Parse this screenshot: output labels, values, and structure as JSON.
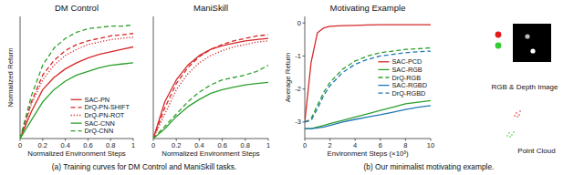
{
  "chart_data": [
    {
      "type": "line",
      "title": "DM Control",
      "x_label": "Normalized Environment Steps",
      "y_label": "Normalized Return",
      "x": [
        0,
        0.1,
        0.2,
        0.3,
        0.4,
        0.5,
        0.6,
        0.7,
        0.8,
        0.9,
        1
      ],
      "xlim": [
        0,
        1
      ],
      "xticks": [
        0,
        0.2,
        0.4,
        0.6,
        0.8,
        1
      ],
      "ylim": [
        0,
        1
      ],
      "tick_labels": "x",
      "grid": false,
      "legend": "lower right",
      "series": [
        {
          "name": "SAC-PN",
          "color": "#d62728",
          "line_style": "solid",
          "values": [
            0,
            0.22,
            0.4,
            0.5,
            0.57,
            0.62,
            0.66,
            0.69,
            0.71,
            0.73,
            0.75
          ]
        },
        {
          "name": "DrQ-PN-SHIFT",
          "color": "#d62728",
          "line_style": "dashed",
          "values": [
            0,
            0.3,
            0.52,
            0.64,
            0.72,
            0.77,
            0.8,
            0.82,
            0.84,
            0.85,
            0.86
          ]
        },
        {
          "name": "DrQ-PN-ROT",
          "color": "#d62728",
          "line_style": "dotted",
          "values": [
            0,
            0.28,
            0.48,
            0.6,
            0.68,
            0.73,
            0.77,
            0.79,
            0.81,
            0.82,
            0.83
          ]
        },
        {
          "name": "SAC-CNN",
          "color": "#2ca02c",
          "line_style": "solid",
          "values": [
            0,
            0.15,
            0.3,
            0.4,
            0.47,
            0.52,
            0.55,
            0.58,
            0.6,
            0.61,
            0.62
          ]
        },
        {
          "name": "DrQ-CNN",
          "color": "#2ca02c",
          "line_style": "dashed",
          "values": [
            0,
            0.35,
            0.6,
            0.74,
            0.82,
            0.87,
            0.9,
            0.91,
            0.92,
            0.92,
            0.93
          ]
        }
      ]
    },
    {
      "type": "line",
      "title": "ManiSkill",
      "x_label": "Normalized Environment Steps",
      "x": [
        0,
        0.1,
        0.2,
        0.3,
        0.4,
        0.5,
        0.6,
        0.7,
        0.8,
        0.9,
        1
      ],
      "xlim": [
        0,
        1
      ],
      "xticks": [
        0,
        0.2,
        0.4,
        0.6,
        0.8,
        1
      ],
      "ylim": [
        0,
        1
      ],
      "tick_labels": "x",
      "grid": false,
      "series": [
        {
          "name": "SAC-PN",
          "color": "#d62728",
          "line_style": "solid",
          "values": [
            0,
            0.3,
            0.48,
            0.6,
            0.68,
            0.73,
            0.76,
            0.78,
            0.8,
            0.81,
            0.82
          ]
        },
        {
          "name": "DrQ-PN-SHIFT",
          "color": "#d62728",
          "line_style": "dashed",
          "values": [
            0,
            0.25,
            0.45,
            0.58,
            0.67,
            0.73,
            0.77,
            0.8,
            0.82,
            0.84,
            0.85
          ]
        },
        {
          "name": "DrQ-PN-ROT",
          "color": "#d62728",
          "line_style": "dotted",
          "values": [
            0,
            0.2,
            0.4,
            0.53,
            0.62,
            0.68,
            0.72,
            0.75,
            0.77,
            0.79,
            0.8
          ]
        },
        {
          "name": "SAC-CNN",
          "color": "#2ca02c",
          "line_style": "solid",
          "values": [
            0,
            0.08,
            0.18,
            0.26,
            0.32,
            0.37,
            0.4,
            0.42,
            0.44,
            0.45,
            0.46
          ]
        },
        {
          "name": "DrQ-CNN",
          "color": "#2ca02c",
          "line_style": "dashed",
          "values": [
            0,
            0.1,
            0.2,
            0.3,
            0.38,
            0.44,
            0.48,
            0.5,
            0.52,
            0.55,
            0.6
          ]
        }
      ]
    },
    {
      "type": "line",
      "title": "Motivating Example",
      "x_label": "Environment Steps (×10³)",
      "y_label": "Average Return",
      "x": [
        0,
        0.5,
        1,
        1.5,
        2,
        3,
        4,
        5,
        6,
        7,
        8,
        9,
        10
      ],
      "xlim": [
        0,
        10
      ],
      "xticks": [
        0,
        2,
        4,
        6,
        8,
        10
      ],
      "ylim": [
        -3.5,
        0.2
      ],
      "yticks": [
        -3,
        -2,
        -1,
        0
      ],
      "grid": false,
      "legend": "center right",
      "series": [
        {
          "name": "SAC-PCD",
          "color": "#d62728",
          "line_style": "solid",
          "values": [
            -3,
            -1.2,
            -0.3,
            -0.15,
            -0.1,
            -0.08,
            -0.07,
            -0.06,
            -0.05,
            -0.05,
            -0.05,
            -0.05,
            -0.05
          ]
        },
        {
          "name": "SAC-RGB",
          "color": "#2ca02c",
          "line_style": "solid",
          "values": [
            -3.2,
            -3.2,
            -3.15,
            -3.1,
            -3.05,
            -2.95,
            -2.85,
            -2.75,
            -2.65,
            -2.55,
            -2.45,
            -2.4,
            -2.35
          ]
        },
        {
          "name": "DrQ-RGB",
          "color": "#2ca02c",
          "line_style": "dashed",
          "values": [
            -3,
            -2.9,
            -2.5,
            -2.1,
            -1.8,
            -1.4,
            -1.15,
            -1.0,
            -0.9,
            -0.85,
            -0.8,
            -0.78,
            -0.75
          ]
        },
        {
          "name": "SAC-RGBD",
          "color": "#1f77b4",
          "line_style": "solid",
          "values": [
            -3.2,
            -3.2,
            -3.18,
            -3.15,
            -3.1,
            -3.0,
            -2.92,
            -2.85,
            -2.78,
            -2.7,
            -2.62,
            -2.55,
            -2.5
          ]
        },
        {
          "name": "DrQ-RGBD",
          "color": "#1f77b4",
          "line_style": "dashed",
          "values": [
            -3,
            -2.95,
            -2.6,
            -2.2,
            -1.9,
            -1.5,
            -1.25,
            -1.1,
            -1.0,
            -0.95,
            -0.9,
            -0.87,
            -0.85
          ]
        }
      ]
    }
  ],
  "captions": [
    "(a) Training curves for DM Control and ManiSkill tasks.",
    "(b) Our minimalist motivating example."
  ],
  "illustration": {
    "image_label": "RGB & Depth Image",
    "cloud_label": "Point Cloud"
  }
}
